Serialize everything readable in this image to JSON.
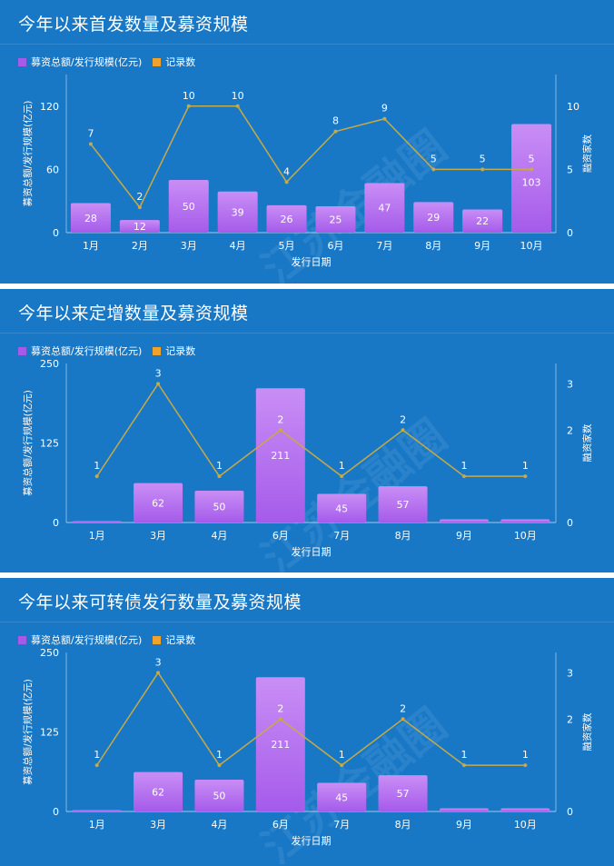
{
  "colors": {
    "panel_bg": "#1878c6",
    "bar": "#a55bea",
    "bar_light": "#c98ef5",
    "line": "#c8aa44",
    "legend_bar": "#a55bea",
    "legend_line": "#f0a32c"
  },
  "watermark_text": "江苏金融圈",
  "chart_data": [
    {
      "type": "bar",
      "title": "今年以来首发数量及募资规模",
      "legend": [
        "募资总额/发行规模(亿元)",
        "记录数"
      ],
      "xlabel": "发行日期",
      "ylabel": "募资总额/发行规模(亿元)",
      "ylabel_right": "融资家数",
      "categories": [
        "1月",
        "2月",
        "3月",
        "4月",
        "5月",
        "6月",
        "7月",
        "8月",
        "9月",
        "10月"
      ],
      "series": [
        {
          "name": "募资总额/发行规模(亿元)",
          "type": "bar",
          "values": [
            28,
            12,
            50,
            39,
            26,
            25,
            47,
            29,
            22,
            103
          ]
        },
        {
          "name": "记录数",
          "type": "line",
          "values": [
            7,
            2,
            10,
            10,
            4,
            8,
            9,
            5,
            5,
            5
          ]
        }
      ],
      "yticks": [
        0,
        60,
        120
      ],
      "ylim": [
        0,
        150
      ],
      "yticks_right": [
        0,
        5,
        10
      ],
      "ylim_right": [
        0,
        12.5
      ]
    },
    {
      "type": "bar",
      "title": "今年以来定增数量及募资规模",
      "legend": [
        "募资总额/发行规模(亿元)",
        "记录数"
      ],
      "xlabel": "发行日期",
      "ylabel": "募资总额/发行规模(亿元)",
      "ylabel_right": "融资家数",
      "categories": [
        "1月",
        "3月",
        "4月",
        "6月",
        "7月",
        "8月",
        "9月",
        "10月"
      ],
      "series": [
        {
          "name": "募资总额/发行规模(亿元)",
          "type": "bar",
          "values": [
            1,
            62,
            50,
            211,
            45,
            57,
            5,
            5
          ]
        },
        {
          "name": "记录数",
          "type": "line",
          "values": [
            1,
            3,
            1,
            2,
            1,
            2,
            1,
            1
          ]
        }
      ],
      "bar_labels": [
        "",
        "62",
        "50",
        "211",
        "45",
        "57",
        "",
        ""
      ],
      "yticks": [
        0,
        125,
        250
      ],
      "ylim": [
        0,
        250
      ],
      "yticks_right": [
        0,
        2,
        3
      ],
      "ylim_right": [
        0,
        3.44
      ]
    },
    {
      "type": "bar",
      "title": "今年以来可转债发行数量及募资规模",
      "legend": [
        "募资总额/发行规模(亿元)",
        "记录数"
      ],
      "xlabel": "发行日期",
      "ylabel": "募资总额/发行规模(亿元)",
      "ylabel_right": "融资家数",
      "categories": [
        "1月",
        "3月",
        "4月",
        "6月",
        "7月",
        "8月",
        "9月",
        "10月"
      ],
      "series": [
        {
          "name": "募资总额/发行规模(亿元)",
          "type": "bar",
          "values": [
            1,
            62,
            50,
            211,
            45,
            57,
            5,
            5
          ]
        },
        {
          "name": "记录数",
          "type": "line",
          "values": [
            1,
            3,
            1,
            2,
            1,
            2,
            1,
            1
          ]
        }
      ],
      "bar_labels": [
        "",
        "62",
        "50",
        "211",
        "45",
        "57",
        "",
        ""
      ],
      "yticks": [
        0,
        125,
        250
      ],
      "ylim": [
        0,
        250
      ],
      "yticks_right": [
        0,
        2,
        3
      ],
      "ylim_right": [
        0,
        3.44
      ]
    }
  ]
}
